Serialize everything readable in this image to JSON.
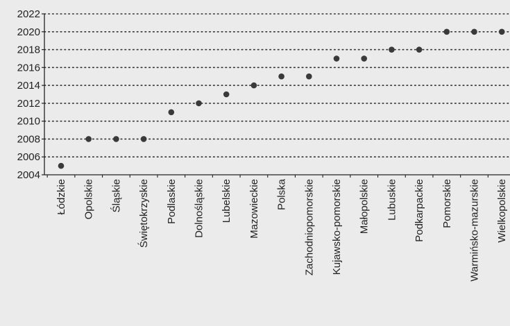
{
  "chart_data": {
    "type": "scatter",
    "categories": [
      "Łódzkie",
      "Opolskie",
      "Śląskie",
      "Świętokrzyskie",
      "Podlaskie",
      "Dolnośląskie",
      "Lubelskie",
      "Mazowieckie",
      "Polska",
      "Zachodniopomorskie",
      "Kujawsko-pomorskie",
      "Małopolskie",
      "Lubuskie",
      "Podkarpackie",
      "Pomorskie",
      "Warmińsko-mazurskie",
      "Wielkopolskie"
    ],
    "values": [
      2005,
      2008,
      2008,
      2008,
      2011,
      2012,
      2013,
      2014,
      2015,
      2015,
      2017,
      2017,
      2018,
      2018,
      2020,
      2020,
      2020
    ],
    "title": "",
    "xlabel": "",
    "ylabel": "",
    "ylim": [
      2004,
      2022
    ],
    "yticks": [
      "2004",
      "2006",
      "2008",
      "2010",
      "2012",
      "2014",
      "2016",
      "2018",
      "2020",
      "2022"
    ],
    "grid": true,
    "colors": {
      "marker": "#3a3a3a",
      "grid": "#333333",
      "axis": "#222222",
      "background": "#ebebeb"
    }
  }
}
